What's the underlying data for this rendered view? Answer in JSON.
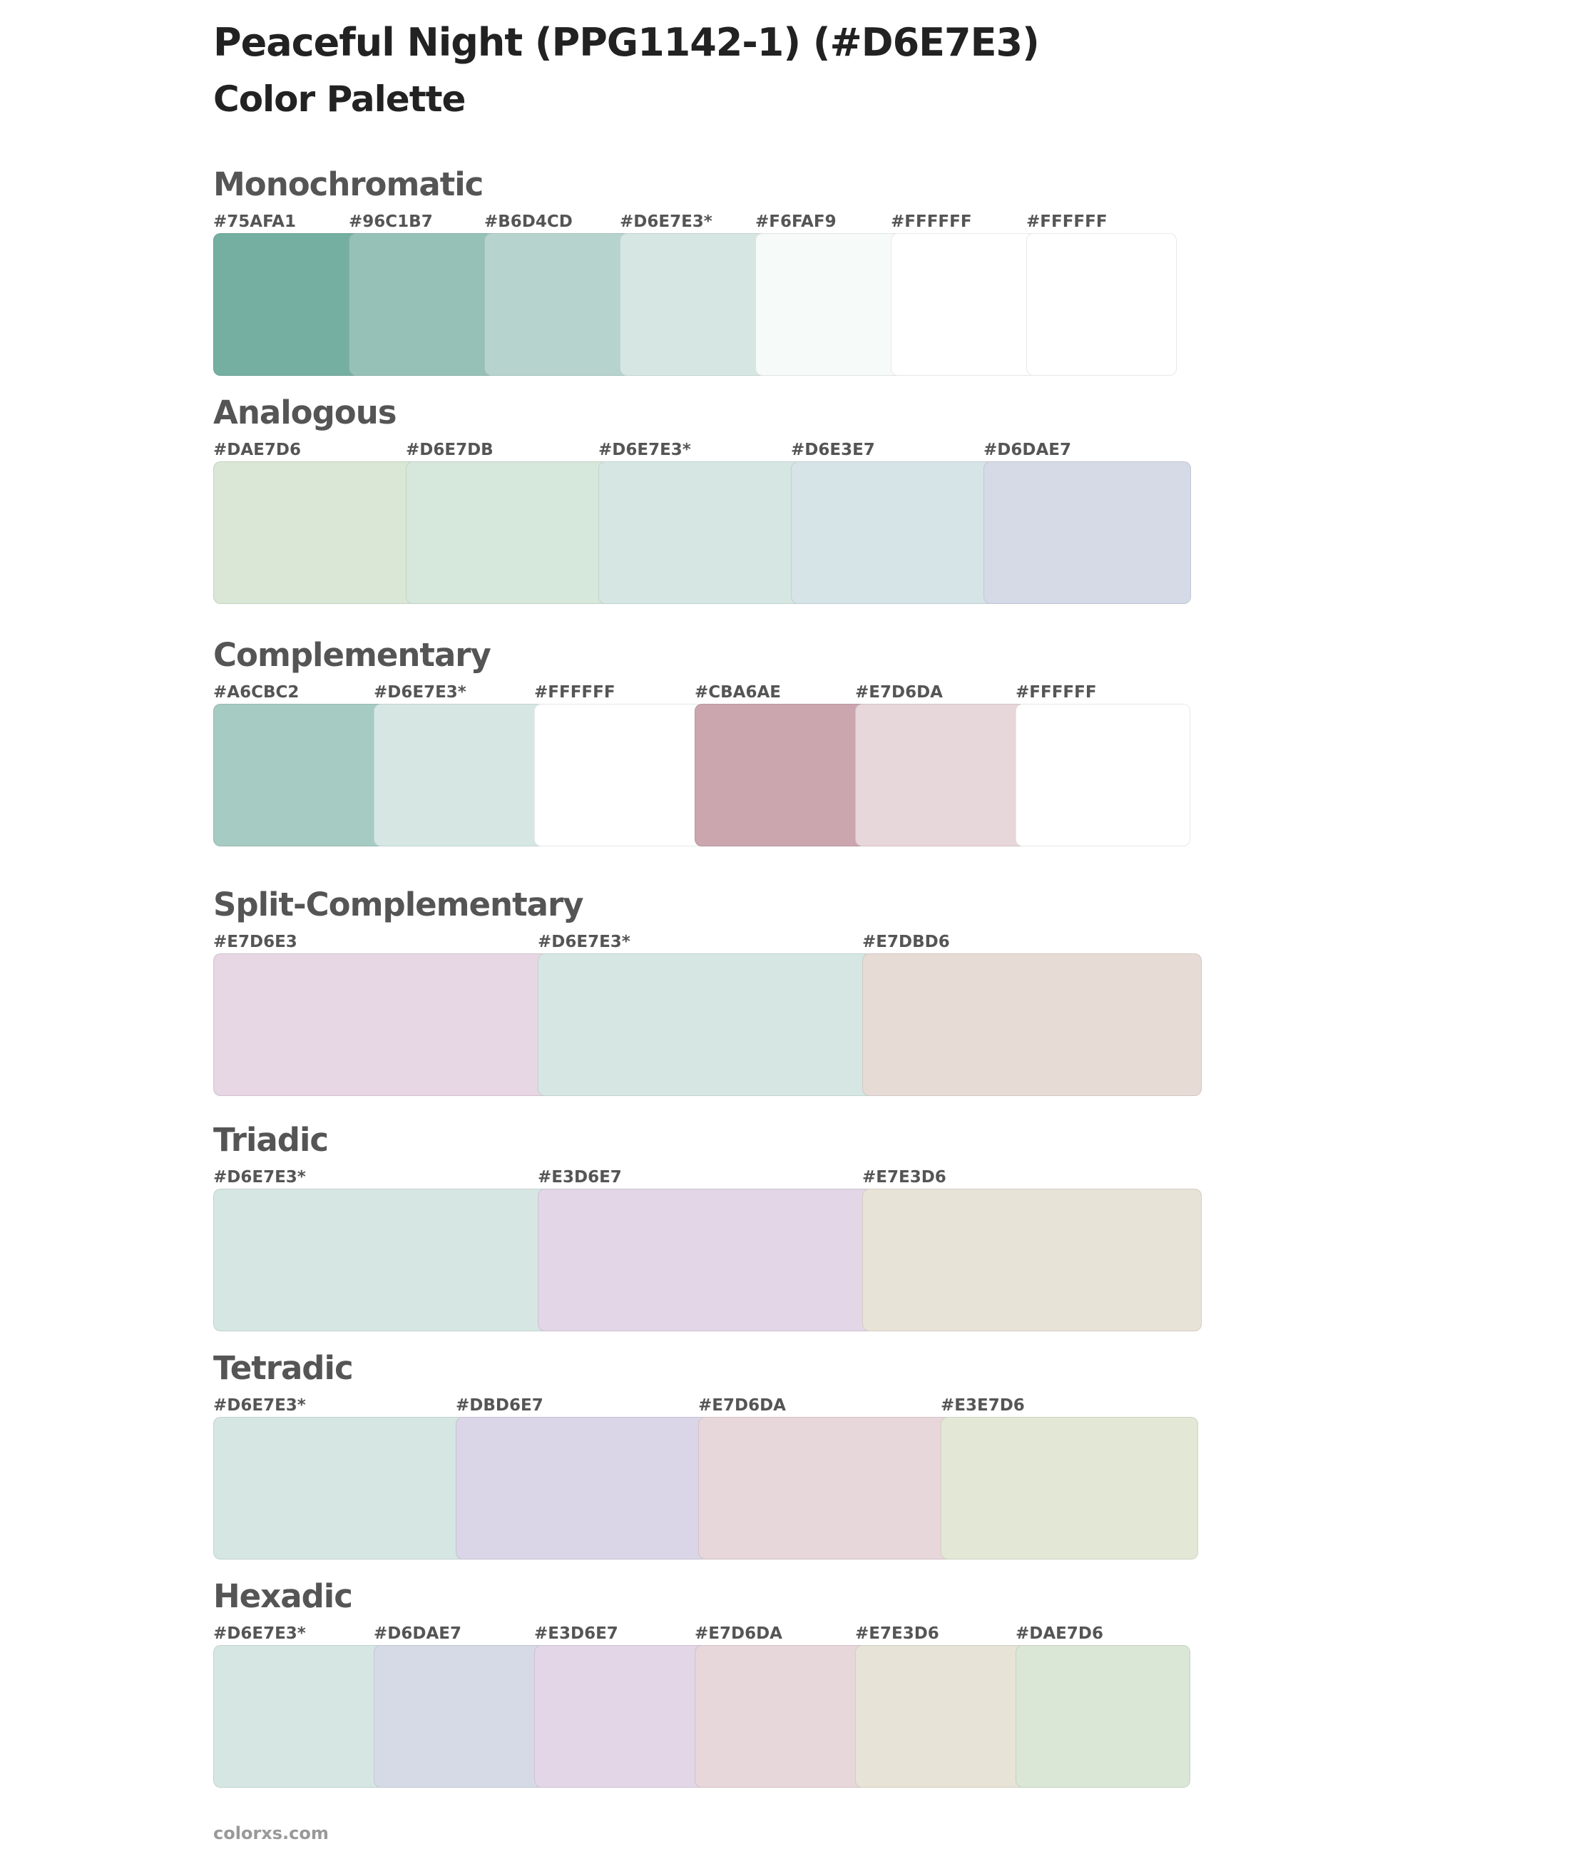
{
  "page": {
    "title": "Peaceful Night (PPG1142-1) (#D6E7E3)",
    "subtitle": "Color Palette"
  },
  "sections": [
    {
      "id": "monochromatic",
      "title": "Monochromatic",
      "colors": [
        {
          "label": "#75AFA1",
          "hex": "#75AFA1"
        },
        {
          "label": "#96C1B7",
          "hex": "#96C1B7"
        },
        {
          "label": "#B6D4CD",
          "hex": "#B6D4CD"
        },
        {
          "label": "#D6E7E3*",
          "hex": "#D6E7E3"
        },
        {
          "label": "#F6FAF9",
          "hex": "#F6FAF9"
        },
        {
          "label": "#FFFFFF",
          "hex": "#FFFFFF"
        },
        {
          "label": "#FFFFFF",
          "hex": "#FFFFFF"
        }
      ]
    },
    {
      "id": "analogous",
      "title": "Analogous",
      "colors": [
        {
          "label": "#DAE7D6",
          "hex": "#DAE7D6"
        },
        {
          "label": "#D6E7DB",
          "hex": "#D6E7DB"
        },
        {
          "label": "#D6E7E3*",
          "hex": "#D6E7E3"
        },
        {
          "label": "#D6E3E7",
          "hex": "#D6E3E7"
        },
        {
          "label": "#D6DAE7",
          "hex": "#D6DAE7"
        }
      ]
    },
    {
      "id": "complementary",
      "title": "Complementary",
      "colors": [
        {
          "label": "#A6CBC2",
          "hex": "#A6CBC2"
        },
        {
          "label": "#D6E7E3*",
          "hex": "#D6E7E3"
        },
        {
          "label": "#FFFFFF",
          "hex": "#FFFFFF"
        },
        {
          "label": "#CBA6AE",
          "hex": "#CBA6AE"
        },
        {
          "label": "#E7D6DA",
          "hex": "#E7D6DA"
        },
        {
          "label": "#FFFFFF",
          "hex": "#FFFFFF"
        }
      ]
    },
    {
      "id": "split-complementary",
      "title": "Split-Complementary",
      "colors": [
        {
          "label": "#E7D6E3",
          "hex": "#E7D6E3"
        },
        {
          "label": "#D6E7E3*",
          "hex": "#D6E7E3"
        },
        {
          "label": "#E7DBD6",
          "hex": "#E7DBD6"
        }
      ]
    },
    {
      "id": "triadic",
      "title": "Triadic",
      "colors": [
        {
          "label": "#D6E7E3*",
          "hex": "#D6E7E3"
        },
        {
          "label": "#E3D6E7",
          "hex": "#E3D6E7"
        },
        {
          "label": "#E7E3D6",
          "hex": "#E7E3D6"
        }
      ]
    },
    {
      "id": "tetradic",
      "title": "Tetradic",
      "colors": [
        {
          "label": "#D6E7E3*",
          "hex": "#D6E7E3"
        },
        {
          "label": "#DBD6E7",
          "hex": "#DBD6E7"
        },
        {
          "label": "#E7D6DA",
          "hex": "#E7D6DA"
        },
        {
          "label": "#E3E7D6",
          "hex": "#E3E7D6"
        }
      ]
    },
    {
      "id": "hexadic",
      "title": "Hexadic",
      "colors": [
        {
          "label": "#D6E7E3*",
          "hex": "#D6E7E3"
        },
        {
          "label": "#D6DAE7",
          "hex": "#D6DAE7"
        },
        {
          "label": "#E3D6E7",
          "hex": "#E3D6E7"
        },
        {
          "label": "#E7D6DA",
          "hex": "#E7D6DA"
        },
        {
          "label": "#E7E3D6",
          "hex": "#E7E3D6"
        },
        {
          "label": "#DAE7D6",
          "hex": "#DAE7D6"
        }
      ]
    }
  ],
  "footer": {
    "text": "colorxs.com"
  }
}
